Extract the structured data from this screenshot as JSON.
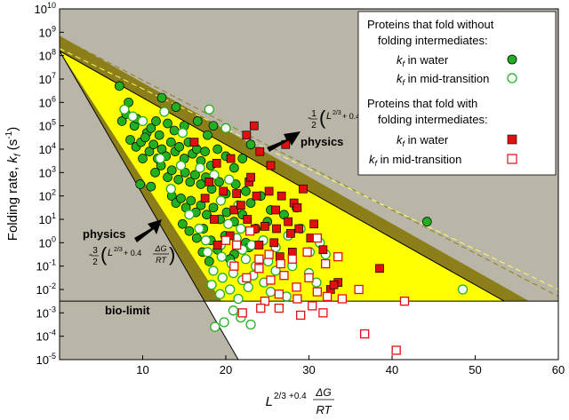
{
  "chart_data": {
    "type": "scatter",
    "x_axis": {
      "label_main": "L",
      "label_exp": "2/3",
      "label_mid": "+0.4",
      "label_num": "ΔG",
      "label_den": "RT",
      "range": [
        0,
        60
      ],
      "ticks": [
        10,
        20,
        30,
        40,
        50,
        60
      ]
    },
    "y_axis": {
      "label": "Folding rate, ",
      "label_var": "k",
      "label_sub": "f",
      "label_unit": " (s",
      "label_unit_exp": "-1",
      "label_close": ")",
      "scale": "log",
      "range_exp": [
        -5,
        10
      ],
      "ticks": [
        {
          "base": "10",
          "exp": "10"
        },
        {
          "base": "10",
          "exp": "9"
        },
        {
          "base": "10",
          "exp": "8"
        },
        {
          "base": "10",
          "exp": "7"
        },
        {
          "base": "10",
          "exp": "6"
        },
        {
          "base": "10",
          "exp": "5"
        },
        {
          "base": "10",
          "exp": "4"
        },
        {
          "base": "10",
          "exp": "3"
        },
        {
          "base": "10",
          "exp": "2"
        },
        {
          "base": "10",
          "exp": "1"
        },
        {
          "base": "10",
          "exp": "0"
        },
        {
          "base": "10",
          "exp": "-1"
        },
        {
          "base": "10",
          "exp": "-2"
        },
        {
          "base": "10",
          "exp": "-3"
        },
        {
          "base": "10",
          "exp": "-4"
        },
        {
          "base": "10",
          "exp": "-5"
        }
      ]
    },
    "legend": {
      "group1_title_1": "Proteins that fold without",
      "group1_title_2": "folding intermediates:",
      "group2_title_1": "Proteins that fold with",
      "group2_title_2": "folding intermediates:",
      "var": "k",
      "sub": "f",
      "item_water": " in water",
      "item_mid": " in mid-transition",
      "item_mid_2": " in mid-transition"
    },
    "annotations": {
      "bio_limit": "bio-limit",
      "physics": "physics",
      "upper_formula_prefix": "-",
      "upper_formula_num": "1",
      "upper_formula_den": "2",
      "lower_formula_prefix": "-",
      "lower_formula_num": "3",
      "lower_formula_den": "2",
      "formula_L": "L",
      "formula_exp": "2/3",
      "formula_plus": " + 0.4",
      "formula_dg": "ΔG",
      "formula_rt": "RT"
    },
    "regions": {
      "bio_limit_log": -2.5,
      "upper_line": {
        "x0": 0,
        "y0": 8.2,
        "x1": 53.5,
        "y1": -2.5
      },
      "upper_band_top": {
        "x0": 0,
        "y0": 8.85,
        "x1": 56.5,
        "y1": -2.5
      },
      "upper_dashed": {
        "x0": 0,
        "y0": 8.8,
        "x1": 60,
        "y1": -2.3
      },
      "upper_dashed_yellow": {
        "x0": 0,
        "y0": 8.3,
        "x1": 60,
        "y1": -2.0
      },
      "lower_line": {
        "x0": 0,
        "y0": 8.2,
        "x1": 21.5,
        "y1": -5
      },
      "lower_band_inner": {
        "x0": 0,
        "y0": 8.2,
        "x1": 19.5,
        "y1": -2.5
      }
    },
    "series": [
      {
        "marker": "circle-filled",
        "color": "#22b020",
        "points": [
          [
            7.2,
            6.7
          ],
          [
            8.3,
            6.0
          ],
          [
            7.5,
            5.2
          ],
          [
            8.0,
            5.5
          ],
          [
            9.0,
            5.0
          ],
          [
            9.3,
            5.3
          ],
          [
            10.5,
            4.7
          ],
          [
            11.0,
            4.9
          ],
          [
            11.6,
            5.2
          ],
          [
            12.3,
            6.2
          ],
          [
            13.0,
            5.1
          ],
          [
            14.0,
            5.8
          ],
          [
            15.0,
            5.0
          ],
          [
            16.6,
            5.2
          ],
          [
            17.8,
            4.6
          ],
          [
            18.5,
            5.0
          ],
          [
            8.5,
            4.4
          ],
          [
            9.2,
            4.1
          ],
          [
            9.8,
            4.3
          ],
          [
            10.3,
            4.5
          ],
          [
            10.8,
            3.9
          ],
          [
            11.3,
            4.2
          ],
          [
            11.8,
            3.6
          ],
          [
            12.3,
            4.0
          ],
          [
            12.8,
            3.7
          ],
          [
            13.4,
            4.3
          ],
          [
            13.9,
            3.9
          ],
          [
            14.4,
            4.1
          ],
          [
            15.0,
            3.6
          ],
          [
            15.5,
            4.3
          ],
          [
            16.0,
            3.8
          ],
          [
            16.5,
            4.0
          ],
          [
            17.0,
            3.5
          ],
          [
            17.5,
            3.9
          ],
          [
            18.2,
            3.3
          ],
          [
            19.0,
            4.0
          ],
          [
            20.0,
            3.7
          ],
          [
            21.0,
            3.2
          ],
          [
            22.0,
            3.6
          ],
          [
            23.0,
            4.2
          ],
          [
            9.7,
            2.5
          ],
          [
            11.5,
            3.0
          ],
          [
            12.2,
            3.3
          ],
          [
            13.0,
            2.8
          ],
          [
            13.5,
            3.1
          ],
          [
            14.3,
            2.7
          ],
          [
            15.1,
            3.0
          ],
          [
            15.7,
            2.6
          ],
          [
            16.3,
            2.9
          ],
          [
            17.0,
            2.5
          ],
          [
            17.6,
            2.8
          ],
          [
            18.3,
            2.3
          ],
          [
            19.2,
            2.6
          ],
          [
            20.0,
            2.1
          ],
          [
            21.2,
            2.5
          ],
          [
            22.4,
            2.2
          ],
          [
            13.5,
            2.0
          ],
          [
            14.0,
            1.7
          ],
          [
            14.6,
            1.9
          ],
          [
            15.2,
            1.5
          ],
          [
            15.8,
            1.8
          ],
          [
            16.4,
            1.3
          ],
          [
            17.0,
            1.6
          ],
          [
            17.7,
            1.2
          ],
          [
            18.5,
            1.5
          ],
          [
            19.3,
            1.0
          ],
          [
            20.1,
            1.3
          ],
          [
            21.0,
            0.9
          ],
          [
            22.0,
            1.2
          ],
          [
            23.0,
            1.7
          ],
          [
            24.2,
            2.0
          ],
          [
            25.4,
            1.4
          ],
          [
            14.8,
            0.8
          ],
          [
            15.6,
            0.5
          ],
          [
            16.5,
            0.2
          ],
          [
            17.3,
            0.6
          ],
          [
            18.2,
            0.1
          ],
          [
            19.0,
            -0.3
          ],
          [
            19.9,
            0.3
          ],
          [
            21.0,
            -0.5
          ],
          [
            22.4,
            0.0
          ],
          [
            23.6,
            0.6
          ],
          [
            25.0,
            0.9
          ],
          [
            27.0,
            1.2
          ],
          [
            28.5,
            1.5
          ],
          [
            17.2,
            -0.4
          ],
          [
            18.0,
            -0.8
          ],
          [
            44.2,
            0.9
          ],
          [
            20.5,
            -0.7
          ],
          [
            22.8,
            -0.2
          ],
          [
            13.8,
            4.8
          ],
          [
            12.0,
            4.6
          ],
          [
            10.0,
            3.6
          ],
          [
            11.0,
            2.4
          ]
        ]
      },
      {
        "marker": "circle-open",
        "color": "#22b020",
        "points": [
          [
            7.8,
            5.7
          ],
          [
            8.8,
            5.4
          ],
          [
            10.0,
            5.2
          ],
          [
            12.6,
            5.6
          ],
          [
            14.8,
            4.7
          ],
          [
            18.0,
            5.7
          ],
          [
            20.0,
            4.9
          ],
          [
            12.1,
            3.6
          ],
          [
            14.6,
            3.3
          ],
          [
            16.9,
            3.2
          ],
          [
            18.6,
            2.9
          ],
          [
            20.4,
            2.7
          ],
          [
            19.4,
            1.8
          ],
          [
            21.5,
            1.6
          ],
          [
            20.3,
            0.8
          ],
          [
            21.8,
            0.6
          ],
          [
            17.6,
            0.1
          ],
          [
            19.4,
            -0.1
          ],
          [
            21.3,
            0.2
          ],
          [
            22.0,
            -0.3
          ],
          [
            23.1,
            -0.1
          ],
          [
            24.5,
            0.1
          ],
          [
            26.0,
            -0.2
          ],
          [
            27.5,
            0.3
          ],
          [
            29.0,
            0.6
          ],
          [
            30.1,
            -0.4
          ],
          [
            31.3,
            0.0
          ],
          [
            19.5,
            -0.6
          ],
          [
            20.7,
            -0.9
          ],
          [
            22.4,
            -0.7
          ],
          [
            23.6,
            -1.0
          ],
          [
            25.1,
            -0.8
          ],
          [
            18.5,
            -1.2
          ],
          [
            19.6,
            -1.5
          ],
          [
            20.9,
            -1.3
          ],
          [
            22.0,
            -1.6
          ],
          [
            23.3,
            -1.4
          ],
          [
            24.6,
            -1.7
          ],
          [
            26.0,
            -1.2
          ],
          [
            28.0,
            -1.0
          ],
          [
            30.0,
            -1.3
          ],
          [
            18.3,
            -1.8
          ],
          [
            19.3,
            -2.2
          ],
          [
            20.5,
            -2.0
          ],
          [
            21.5,
            -2.4
          ],
          [
            22.7,
            -1.9
          ],
          [
            25.4,
            -2.1
          ],
          [
            27.3,
            -2.3
          ],
          [
            30.9,
            -1.7
          ],
          [
            20.9,
            -2.9
          ],
          [
            21.8,
            -3.2
          ],
          [
            19.8,
            -3.4
          ],
          [
            23.0,
            -3.5
          ],
          [
            18.7,
            -3.6
          ],
          [
            48.5,
            -2.0
          ],
          [
            32.0,
            -0.5
          ],
          [
            16.8,
            0.6
          ],
          [
            17.8,
            -0.4
          ],
          [
            15.6,
            1.2
          ],
          [
            13.4,
            2.3
          ]
        ]
      },
      {
        "marker": "square-filled",
        "color": "#e01010",
        "points": [
          [
            16.2,
            4.3
          ],
          [
            18.9,
            3.4
          ],
          [
            20.6,
            3.6
          ],
          [
            22.5,
            4.6
          ],
          [
            23.4,
            5.0
          ],
          [
            24.1,
            3.9
          ],
          [
            25.4,
            3.3
          ],
          [
            27.2,
            4.2
          ],
          [
            18.0,
            2.6
          ],
          [
            19.7,
            2.2
          ],
          [
            21.3,
            2.1
          ],
          [
            22.8,
            2.6
          ],
          [
            23.7,
            2.0
          ],
          [
            25.2,
            2.2
          ],
          [
            26.7,
            2.0
          ],
          [
            28.2,
            1.7
          ],
          [
            29.3,
            2.3
          ],
          [
            21.0,
            1.4
          ],
          [
            22.6,
            1.0
          ],
          [
            23.5,
            0.6
          ],
          [
            24.7,
            0.7
          ],
          [
            26.1,
            0.6
          ],
          [
            27.5,
            0.9
          ],
          [
            28.8,
            0.6
          ],
          [
            30.6,
            0.8
          ],
          [
            18.6,
            1.0
          ],
          [
            20.5,
            0.3
          ],
          [
            24.0,
            -0.1
          ],
          [
            25.8,
            0.0
          ],
          [
            27.8,
            0.4
          ],
          [
            30.2,
            0.2
          ],
          [
            21.8,
            1.6
          ],
          [
            23.0,
            2.8
          ],
          [
            26.0,
            1.4
          ],
          [
            28.6,
            1.5
          ],
          [
            19.0,
            -0.1
          ],
          [
            26.5,
            -0.6
          ],
          [
            28.0,
            -0.4
          ],
          [
            32.6,
            -2.0
          ],
          [
            33.5,
            -1.7
          ],
          [
            33.0,
            -1.8
          ],
          [
            38.5,
            -1.1
          ],
          [
            17.5,
            1.9
          ],
          [
            31.7,
            -0.3
          ]
        ]
      },
      {
        "marker": "square-open",
        "color": "#e01010",
        "points": [
          [
            20.0,
            0.1
          ],
          [
            21.3,
            -0.1
          ],
          [
            22.9,
            0.5
          ],
          [
            24.0,
            -0.7
          ],
          [
            25.2,
            -0.5
          ],
          [
            26.6,
            -0.9
          ],
          [
            28.0,
            -0.7
          ],
          [
            29.8,
            -0.4
          ],
          [
            31.0,
            0.2
          ],
          [
            32.0,
            -0.9
          ],
          [
            33.5,
            -0.6
          ],
          [
            21.0,
            -1.0
          ],
          [
            22.5,
            -1.5
          ],
          [
            24.0,
            -1.1
          ],
          [
            25.4,
            -1.6
          ],
          [
            27.0,
            -1.4
          ],
          [
            28.5,
            -1.9
          ],
          [
            30.0,
            -1.5
          ],
          [
            31.0,
            -2.1
          ],
          [
            24.7,
            -2.5
          ],
          [
            26.4,
            -2.8
          ],
          [
            28.6,
            -2.4
          ],
          [
            30.4,
            -2.7
          ],
          [
            32.2,
            -2.3
          ],
          [
            34.0,
            -2.4
          ],
          [
            26.4,
            -2.2
          ],
          [
            36.0,
            -2.0
          ],
          [
            41.5,
            -2.5
          ],
          [
            36.7,
            -3.9
          ],
          [
            40.5,
            -4.6
          ],
          [
            22.0,
            -3.0
          ],
          [
            24.2,
            -2.8
          ],
          [
            29.0,
            -3.1
          ],
          [
            31.7,
            -3.0
          ]
        ]
      }
    ]
  }
}
